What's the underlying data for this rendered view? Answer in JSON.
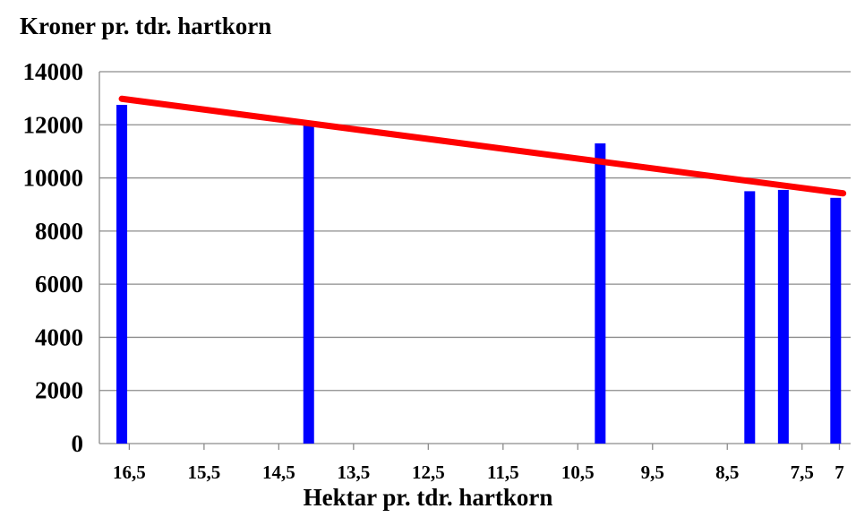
{
  "chart_data": {
    "type": "bar",
    "ylabel": "Kroner pr. tdr. hartkorn",
    "xlabel": "Hektar pr. tdr. hartkorn",
    "x_reversed": true,
    "xlim": [
      16.9,
      6.85
    ],
    "ylim": [
      0,
      14000
    ],
    "y_ticks": [
      0,
      2000,
      4000,
      6000,
      8000,
      10000,
      12000,
      14000
    ],
    "y_tick_labels": [
      "0",
      "2000",
      "4000",
      "6000",
      "8000",
      "10000",
      "12000",
      "14000"
    ],
    "x_ticks": [
      16.5,
      15.5,
      14.5,
      13.5,
      12.5,
      11.5,
      10.5,
      9.5,
      8.5,
      7.5,
      7
    ],
    "x_tick_labels": [
      "16,5",
      "15,5",
      "14,5",
      "13,5",
      "12,5",
      "11,5",
      "10,5",
      "9,5",
      "8,5",
      "7,5",
      "7"
    ],
    "grid": true,
    "bars": {
      "color": "#0000ff",
      "x": [
        16.6,
        14.1,
        10.2,
        8.2,
        7.75,
        7.05
      ],
      "values": [
        12750,
        12000,
        11300,
        9500,
        9550,
        9250
      ]
    },
    "trend_line": {
      "color": "#ff0000",
      "x": [
        16.6,
        6.95
      ],
      "values": [
        12980,
        9420
      ]
    }
  }
}
